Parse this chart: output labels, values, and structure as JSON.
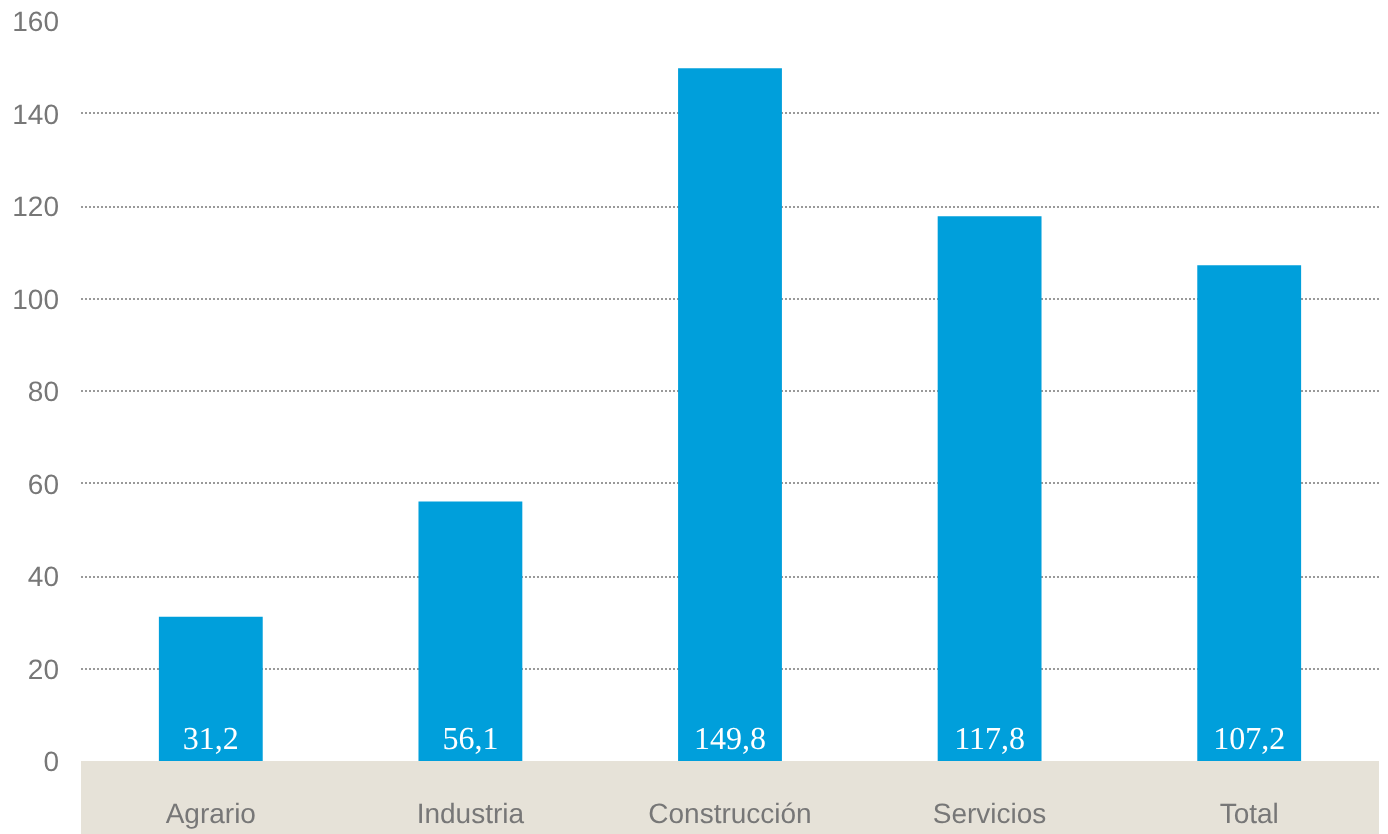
{
  "chart_data": {
    "type": "bar",
    "categories": [
      "Agrario",
      "Industria",
      "Construcción",
      "Servicios",
      "Total"
    ],
    "values": [
      31.2,
      56.1,
      149.8,
      117.8,
      107.2
    ],
    "value_labels": [
      "31,2",
      "56,1",
      "149,8",
      "117,8",
      "107,2"
    ],
    "color": "#009fdb",
    "ylim": [
      0,
      160
    ],
    "yticks": [
      0,
      20,
      40,
      60,
      80,
      100,
      120,
      140,
      160
    ],
    "grid": "y"
  }
}
